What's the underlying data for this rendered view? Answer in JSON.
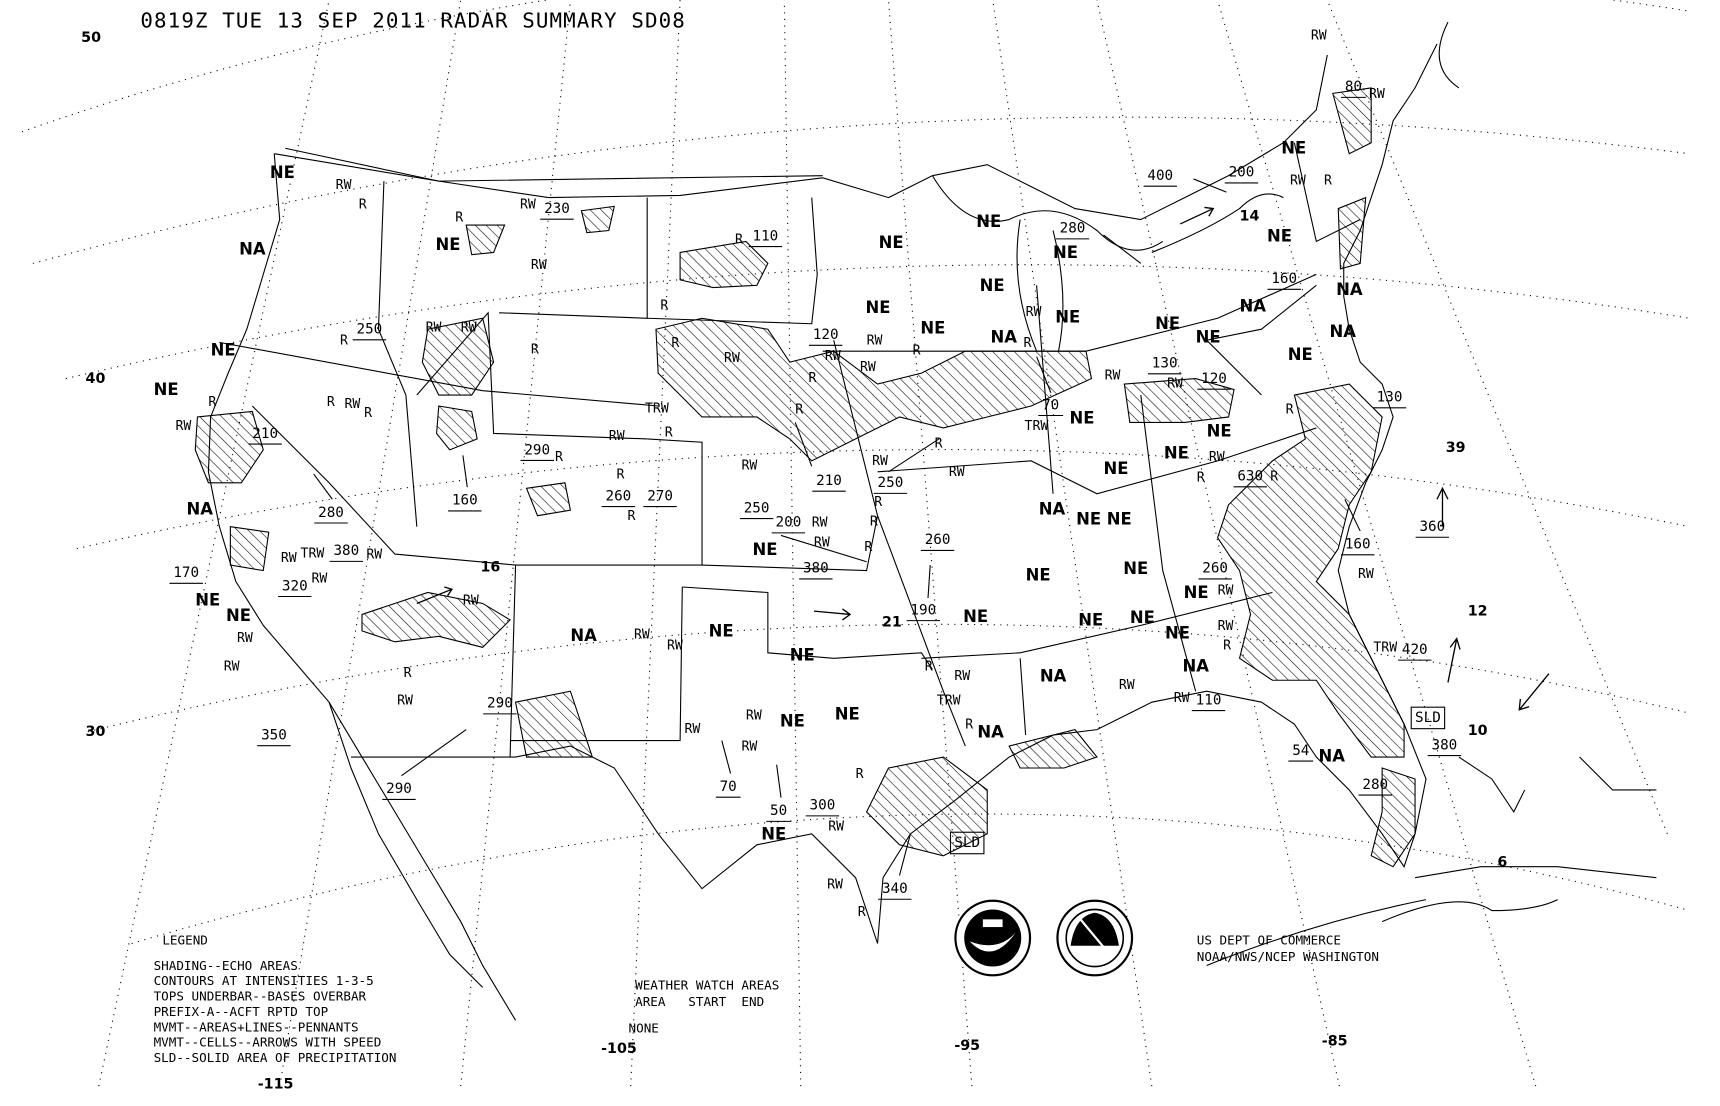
{
  "header": {
    "title": "0819Z TUE 13 SEP 2011 RADAR SUMMARY SD08"
  },
  "legend": {
    "heading": "LEGEND",
    "lines": [
      "SHADING--ECHO AREAS",
      "CONTOURS AT INTENSITIES 1-3-5",
      "TOPS UNDERBAR--BASES OVERBAR",
      "PREFIX-A--ACFT RPTD TOP",
      "MVMT--AREAS+LINES--PENNANTS",
      "MVMT--CELLS--ARROWS WITH SPEED",
      "SLD--SOLID AREA OF PRECIPITATION"
    ]
  },
  "watch": {
    "heading": "WEATHER WATCH AREAS",
    "columns": "AREA   START  END",
    "value": "NONE"
  },
  "credit": {
    "line1": "US DEPT OF COMMERCE",
    "line2": "NOAA/NWS/NCEP WASHINGTON"
  },
  "logos": {
    "noaa": "NOAA",
    "nws": "NATIONAL WEATHER SERVICE"
  },
  "axes": {
    "latitudes": [
      "50",
      "40",
      "30"
    ],
    "longitudes": [
      "-115",
      "-105",
      "-95",
      "-85"
    ]
  },
  "map": {
    "region_codes": [
      "NE",
      "NA",
      "NE",
      "NE",
      "NE",
      "NA",
      "NE",
      "NE",
      "NA",
      "NE",
      "NE",
      "NE",
      "NE",
      "NE",
      "NE",
      "NE",
      "NA",
      "NE",
      "NE",
      "NE",
      "NE",
      "NE",
      "NE",
      "NA",
      "NE",
      "NE",
      "NA",
      "NE",
      "NE",
      "NE",
      "NE",
      "NE",
      "NE",
      "NE",
      "NE",
      "NE",
      "NE",
      "NE",
      "NE",
      "NE",
      "NA",
      "NE",
      "NE",
      "NA",
      "NA",
      "NA",
      "NE",
      "NA",
      "NA"
    ],
    "tops": [
      "250",
      "210",
      "280",
      "160",
      "230",
      "290",
      "260",
      "270",
      "250",
      "210",
      "250",
      "200",
      "380",
      "260",
      "190",
      "110",
      "120",
      "280",
      "70",
      "170",
      "320",
      "380",
      "350",
      "290",
      "290",
      "70",
      "50",
      "300",
      "340",
      "400",
      "200",
      "160",
      "130",
      "120",
      "130",
      "630",
      "160",
      "260",
      "110",
      "420",
      "380",
      "280",
      "54",
      "360",
      "80"
    ],
    "speeds": [
      "16",
      "21",
      "14",
      "39",
      "12",
      "10",
      "6"
    ],
    "precip_types": [
      "RW",
      "R",
      "R",
      "RW",
      "RW",
      "R",
      "RW",
      "RW",
      "R",
      "R",
      "R",
      "RW",
      "R",
      "RW",
      "RW",
      "RW",
      "TRW",
      "RW",
      "RW",
      "RW",
      "RW",
      "R",
      "RW",
      "RW",
      "R",
      "R",
      "R",
      "RW",
      "RW",
      "RW",
      "RW",
      "RW",
      "R",
      "R",
      "R",
      "TRW",
      "RW",
      "R",
      "RW",
      "R",
      "RW",
      "RW",
      "R",
      "RW",
      "R",
      "RW",
      "RW",
      "R",
      "RW",
      "RW",
      "R",
      "R",
      "R",
      "RW",
      "R",
      "TRW",
      "R",
      "TRW",
      "RW",
      "R",
      "R",
      "RW",
      "RW",
      "R",
      "RW",
      "RW",
      "RW",
      "R",
      "RW",
      "RW",
      "R",
      "RW",
      "R",
      "R",
      "RW",
      "RW",
      "RW",
      "R",
      "RW",
      "RW",
      "TRW"
    ],
    "solid_areas": [
      "SLD",
      "SLD"
    ]
  }
}
